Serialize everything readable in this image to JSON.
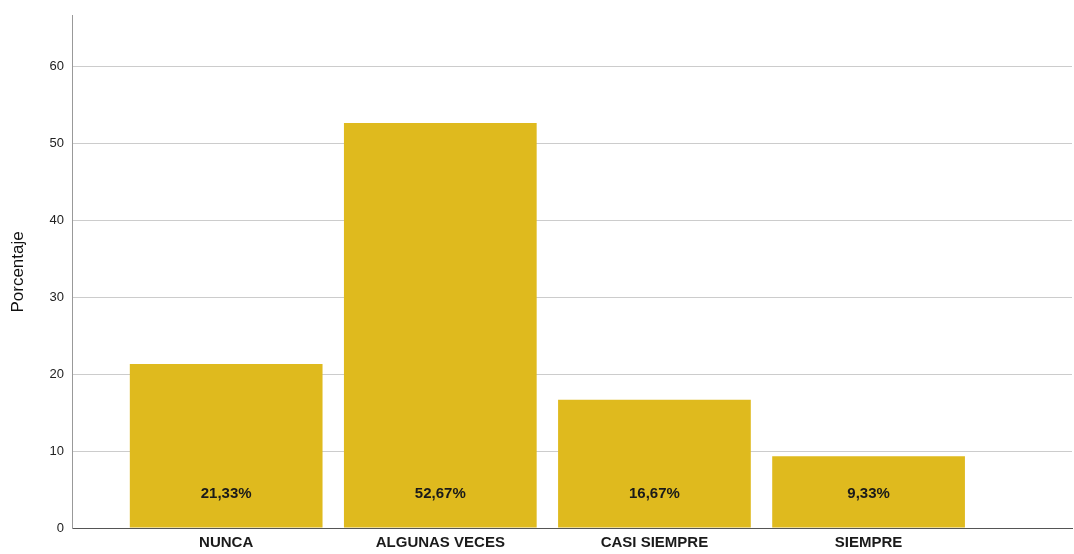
{
  "chart_data": {
    "type": "bar",
    "ylabel": "Porcentaje",
    "categories": [
      "NUNCA",
      "ALGUNAS VECES",
      "CASI SIEMPRE",
      "SIEMPRE"
    ],
    "values": [
      21.33,
      52.67,
      16.67,
      9.33
    ],
    "color": "#dfba1e",
    "value_labels": [
      "21,33%",
      "52,67%",
      "16,67%",
      "9,33%"
    ],
    "ylim": [
      0,
      66.6
    ],
    "yticks": [
      0,
      10,
      20,
      30,
      40,
      50,
      60
    ],
    "grid": "y"
  }
}
